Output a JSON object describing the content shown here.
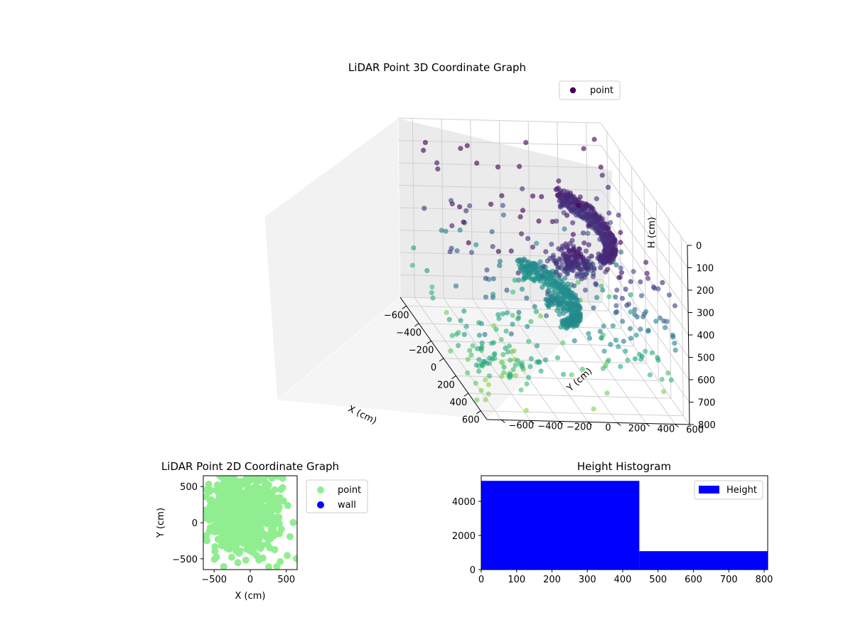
{
  "chart_data": [
    {
      "type": "scatter",
      "title": "LiDAR Point 3D Coordinate Graph",
      "xlabel": "X (cm)",
      "ylabel": "Y (cm)",
      "zlabel": "H (cm)",
      "xlim": [
        -700,
        700
      ],
      "ylim": [
        -700,
        700
      ],
      "zlim": [
        800,
        0
      ],
      "xticks": [
        "−600",
        "−400",
        "−200",
        "0",
        "200",
        "400",
        "600"
      ],
      "yticks": [
        "−600",
        "−400",
        "−200",
        "0",
        "200",
        "400",
        "600"
      ],
      "zticks": [
        "0",
        "100",
        "200",
        "300",
        "400",
        "500",
        "600",
        "700",
        "800"
      ],
      "legend": {
        "position": "top-right",
        "entries": [
          "point"
        ]
      },
      "colormap": "viridis",
      "grid": true,
      "series": [
        {
          "name": "point",
          "color_by": "height",
          "clusters": [
            {
              "kind": "arc",
              "cx": -100,
              "cy": 250,
              "z": 230,
              "r": 420,
              "a0": 0.2,
              "a1": 2.9,
              "rows": 6,
              "dr": 20,
              "n": 70
            },
            {
              "kind": "blob",
              "x": 250,
              "y": 100,
              "z": 260,
              "sx": 150,
              "sy": 130,
              "sz": 25,
              "n": 160
            },
            {
              "kind": "arc",
              "cx": 0,
              "cy": 0,
              "z": 500,
              "r": 360,
              "a0": 0.0,
              "a1": 3.3,
              "rows": 5,
              "dr": 22,
              "n": 70
            },
            {
              "kind": "blob",
              "x": 100,
              "y": 40,
              "z": 500,
              "sx": 120,
              "sy": 60,
              "sz": 10,
              "n": 60
            },
            {
              "kind": "scatter",
              "x": 0,
              "y": 0,
              "z": 400,
              "sx": 700,
              "sy": 700,
              "sz": 350,
              "n": 180
            },
            {
              "kind": "grid",
              "x0": 350,
              "x1": 650,
              "y0": 100,
              "y1": 650,
              "z0": 200,
              "z1": 650,
              "n": 60
            },
            {
              "kind": "scatter",
              "x": 350,
              "y": -500,
              "z": 650,
              "sx": 350,
              "sy": 250,
              "sz": 120,
              "n": 90
            }
          ]
        }
      ]
    },
    {
      "type": "scatter",
      "title": "LiDAR Point 2D Coordinate Graph",
      "xlabel": "X (cm)",
      "ylabel": "Y (cm)",
      "xlim": [
        -650,
        650
      ],
      "ylim": [
        -650,
        650
      ],
      "xticks": [
        "−500",
        "0",
        "500"
      ],
      "yticks": [
        "−500",
        "0",
        "500"
      ],
      "legend": {
        "position": "outside-right",
        "entries": [
          "point",
          "wall"
        ]
      },
      "series": [
        {
          "name": "point",
          "color": "#90ee90",
          "extent": {
            "x": [
              -650,
              650
            ],
            "y": [
              -650,
              650
            ]
          }
        },
        {
          "name": "wall",
          "color": "#0000ff",
          "points": []
        }
      ]
    },
    {
      "type": "bar",
      "title": "Height Histogram",
      "xlim": [
        0,
        810
      ],
      "ylim": [
        0,
        5500
      ],
      "xticks": [
        "0",
        "100",
        "200",
        "300",
        "400",
        "500",
        "600",
        "700",
        "800"
      ],
      "yticks": [
        "0",
        "2000",
        "4000"
      ],
      "legend": {
        "position": "top-right",
        "entries": [
          "Height"
        ]
      },
      "series": [
        {
          "name": "Height",
          "color": "#0000ff",
          "bins": [
            {
              "x0": 0,
              "x1": 447,
              "count": 5200
            },
            {
              "x0": 447,
              "x1": 810,
              "count": 1080
            }
          ]
        }
      ]
    }
  ]
}
